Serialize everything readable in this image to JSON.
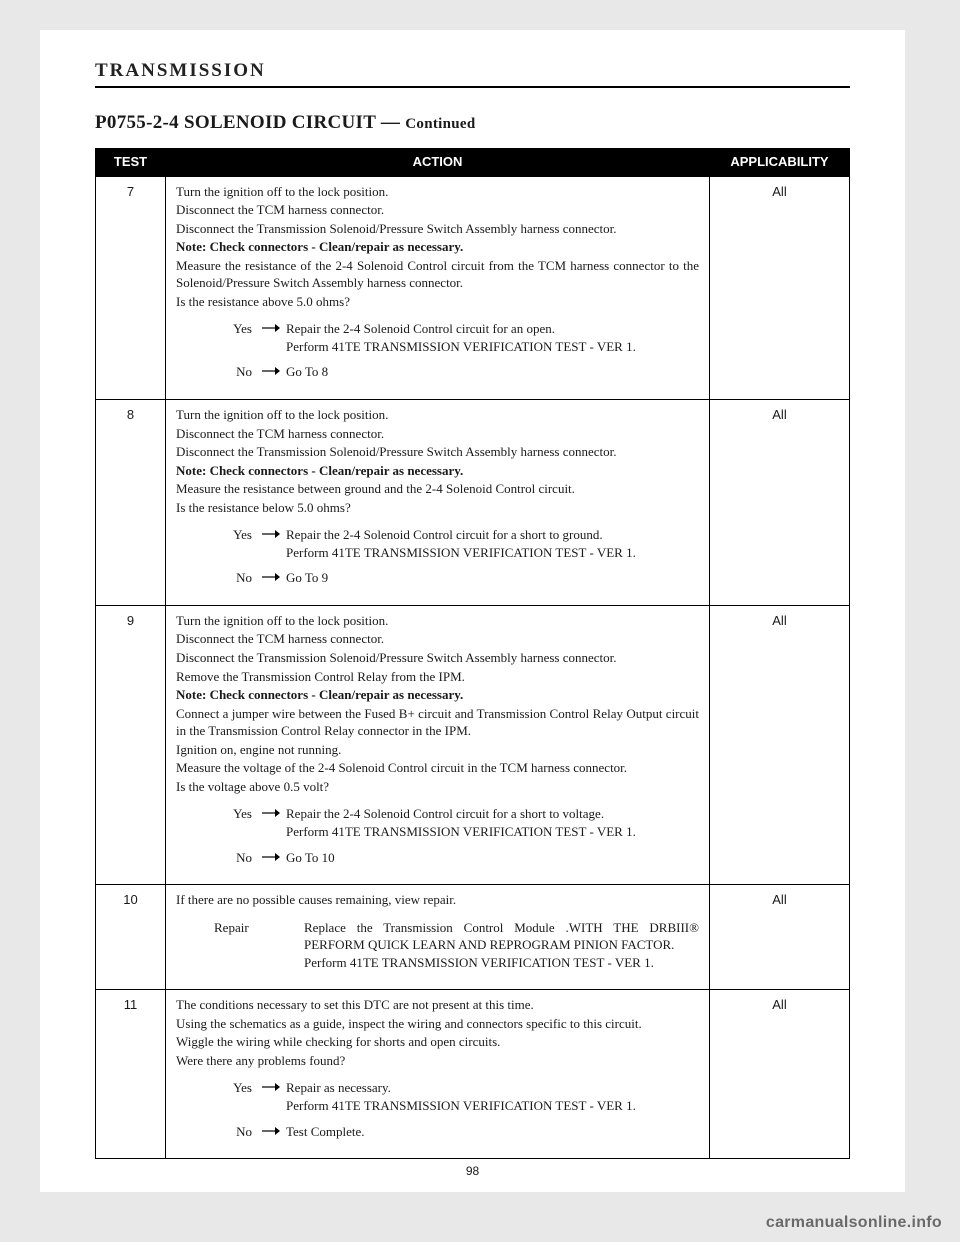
{
  "section_header": "TRANSMISSION",
  "title_main": "P0755-2-4 SOLENOID CIRCUIT —",
  "title_cont": "Continued",
  "table": {
    "headers": [
      "TEST",
      "ACTION",
      "APPLICABILITY"
    ],
    "rows": [
      {
        "test": "7",
        "applic": "All",
        "lines": [
          {
            "t": "Turn the ignition off to the lock position."
          },
          {
            "t": "Disconnect the TCM harness connector."
          },
          {
            "t": "Disconnect the Transmission Solenoid/Pressure Switch Assembly harness connector."
          },
          {
            "t": "Note: Check connectors - Clean/repair as necessary.",
            "bold": true
          },
          {
            "t": "Measure the resistance of the 2-4 Solenoid Control circuit from the TCM harness connector to the Solenoid/Pressure Switch Assembly harness connector."
          },
          {
            "t": "Is the resistance above 5.0 ohms?"
          }
        ],
        "branches": [
          {
            "label": "Yes",
            "lines": [
              "Repair the 2-4 Solenoid Control circuit for an open.",
              "Perform 41TE TRANSMISSION VERIFICATION TEST - VER 1."
            ]
          },
          {
            "label": "No",
            "lines": [
              "Go To   8"
            ]
          }
        ]
      },
      {
        "test": "8",
        "applic": "All",
        "lines": [
          {
            "t": "Turn the ignition off to the lock position."
          },
          {
            "t": "Disconnect the TCM harness connector."
          },
          {
            "t": "Disconnect the Transmission Solenoid/Pressure Switch Assembly harness connector."
          },
          {
            "t": "Note: Check connectors - Clean/repair as necessary.",
            "bold": true
          },
          {
            "t": "Measure the resistance between ground and the 2-4 Solenoid Control circuit."
          },
          {
            "t": "Is the resistance below 5.0 ohms?"
          }
        ],
        "branches": [
          {
            "label": "Yes",
            "lines": [
              "Repair the 2-4 Solenoid Control circuit for a short to ground.",
              "Perform 41TE TRANSMISSION VERIFICATION TEST - VER 1."
            ]
          },
          {
            "label": "No",
            "lines": [
              "Go To   9"
            ]
          }
        ]
      },
      {
        "test": "9",
        "applic": "All",
        "lines": [
          {
            "t": "Turn the ignition off to the lock position."
          },
          {
            "t": "Disconnect the TCM harness connector."
          },
          {
            "t": "Disconnect the Transmission Solenoid/Pressure Switch Assembly harness connector."
          },
          {
            "t": "Remove the Transmission Control Relay from the IPM."
          },
          {
            "t": "Note: Check connectors - Clean/repair as necessary.",
            "bold": true
          },
          {
            "t": "Connect a jumper wire between the Fused B+ circuit and Transmission Control Relay Output circuit in the Transmission Control Relay connector in the IPM."
          },
          {
            "t": "Ignition on, engine not running."
          },
          {
            "t": "Measure the voltage of the 2-4 Solenoid Control circuit in the TCM harness connector."
          },
          {
            "t": "Is the voltage above 0.5 volt?"
          }
        ],
        "branches": [
          {
            "label": "Yes",
            "lines": [
              "Repair the 2-4 Solenoid Control circuit for a short to voltage.",
              "Perform 41TE TRANSMISSION VERIFICATION TEST - VER 1."
            ]
          },
          {
            "label": "No",
            "lines": [
              "Go To   10"
            ]
          }
        ]
      },
      {
        "test": "10",
        "applic": "All",
        "lines": [
          {
            "t": "If there are no possible causes remaining, view repair."
          }
        ],
        "branches": [
          {
            "label": "Repair",
            "no_arrow": true,
            "lines": [
              "Replace the Transmission Control Module .WITH THE DRBIII® PERFORM QUICK LEARN AND REPROGRAM PINION FACTOR.",
              "Perform 41TE TRANSMISSION VERIFICATION TEST - VER 1."
            ]
          }
        ]
      },
      {
        "test": "11",
        "applic": "All",
        "lines": [
          {
            "t": "The conditions necessary to set this DTC are not present at this time."
          },
          {
            "t": "Using the schematics as a guide, inspect the wiring and connectors specific to this circuit."
          },
          {
            "t": "Wiggle the wiring while checking for shorts and open circuits."
          },
          {
            "t": "Were there any problems found?"
          }
        ],
        "branches": [
          {
            "label": "Yes",
            "lines": [
              "Repair as necessary.",
              "Perform 41TE TRANSMISSION VERIFICATION TEST - VER 1."
            ]
          },
          {
            "label": "No",
            "lines": [
              "Test Complete."
            ]
          }
        ]
      }
    ]
  },
  "page_number": "98",
  "watermark": "carmanualsonline.info"
}
